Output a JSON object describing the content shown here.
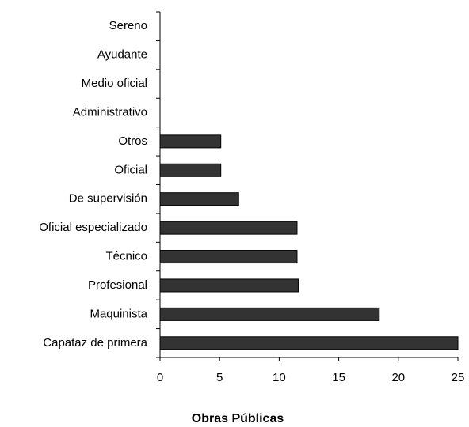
{
  "chart_data": {
    "type": "bar",
    "orientation": "horizontal",
    "x_label": "Obras Públicas",
    "categories": [
      "Sereno",
      "Ayudante",
      "Medio oficial",
      "Administrativo",
      "Otros",
      "Oficial",
      "De supervisión",
      "Oficial especializado",
      "Técnico",
      "Profesional",
      "Maquinista",
      "Capataz de primera"
    ],
    "values": [
      0,
      0,
      0,
      0,
      5.1,
      5.1,
      6.6,
      11.5,
      11.5,
      11.6,
      18.4,
      25
    ],
    "color": "#333333",
    "xlim": [
      0,
      25
    ],
    "xticks": [
      0,
      5,
      10,
      15,
      20,
      25
    ],
    "grid": false
  }
}
